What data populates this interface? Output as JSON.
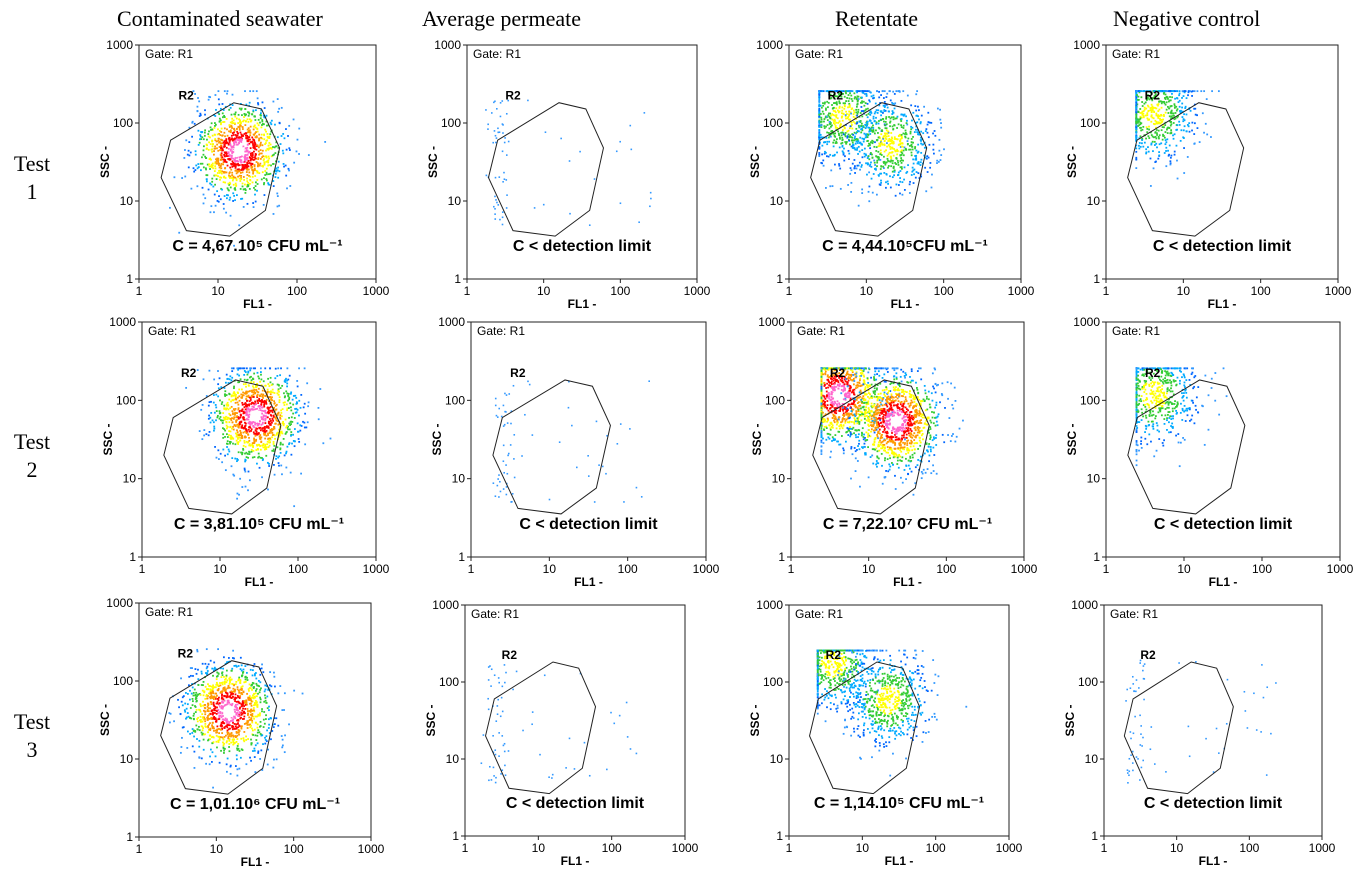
{
  "columns": [
    "Contaminated seawater",
    "Average permeate",
    "Retentate",
    "Negative control"
  ],
  "rows": [
    {
      "line1": "Test",
      "line2": "1"
    },
    {
      "line1": "Test",
      "line2": "2"
    },
    {
      "line1": "Test",
      "line2": "3"
    }
  ],
  "axis": {
    "xlabel": "FL1  -",
    "ylabel": "SSC  -",
    "xticks": [
      "1",
      "10",
      "100",
      "1000"
    ],
    "yticks": [
      "1",
      "10",
      "100",
      "1000"
    ],
    "scale": "log",
    "range": [
      1,
      1000
    ]
  },
  "gate_label": "Gate: R1",
  "region_label": "R2",
  "chart_data": [
    {
      "type": "scatter",
      "row": 1,
      "column": "Contaminated seawater",
      "annotation": "C = 4,67.10⁵ CFU mL⁻¹",
      "cluster": {
        "x": 18,
        "y": 45
      },
      "density": "high"
    },
    {
      "type": "scatter",
      "row": 1,
      "column": "Average permeate",
      "annotation": "C < detection limit",
      "density": "sparse"
    },
    {
      "type": "scatter",
      "row": 1,
      "column": "Retentate",
      "annotation": "C = 4,44.10⁵CFU mL⁻¹",
      "clusters": [
        {
          "x": 5,
          "y": 120
        },
        {
          "x": 20,
          "y": 55
        }
      ],
      "density": "medium"
    },
    {
      "type": "scatter",
      "row": 1,
      "column": "Negative control",
      "annotation": "C < detection limit",
      "cluster": {
        "x": 4,
        "y": 130
      },
      "density": "medium"
    },
    {
      "type": "scatter",
      "row": 2,
      "column": "Contaminated seawater",
      "annotation": "C = 3,81.10⁵ CFU mL⁻¹",
      "cluster": {
        "x": 28,
        "y": 65
      },
      "density": "high"
    },
    {
      "type": "scatter",
      "row": 2,
      "column": "Average permeate",
      "annotation": "C < detection limit",
      "density": "sparse"
    },
    {
      "type": "scatter",
      "row": 2,
      "column": "Retentate",
      "annotation": "C = 7,22.10⁷ CFU mL⁻¹",
      "clusters": [
        {
          "x": 4,
          "y": 120
        },
        {
          "x": 22,
          "y": 55
        }
      ],
      "density": "high"
    },
    {
      "type": "scatter",
      "row": 2,
      "column": "Negative control",
      "annotation": "C < detection limit",
      "cluster": {
        "x": 4,
        "y": 120
      },
      "density": "medium"
    },
    {
      "type": "scatter",
      "row": 3,
      "column": "Contaminated seawater",
      "annotation": "C = 1,01.10⁶ CFU mL⁻¹",
      "cluster": {
        "x": 14,
        "y": 42
      },
      "density": "high"
    },
    {
      "type": "scatter",
      "row": 3,
      "column": "Average permeate",
      "annotation": "C < detection limit",
      "density": "sparse"
    },
    {
      "type": "scatter",
      "row": 3,
      "column": "Retentate",
      "annotation": "C = 1,14.10⁵ CFU mL⁻¹",
      "clusters": [
        {
          "x": 4,
          "y": 180
        },
        {
          "x": 22,
          "y": 60
        }
      ],
      "density": "medium"
    },
    {
      "type": "scatter",
      "row": 3,
      "column": "Negative control",
      "annotation": "C < detection limit",
      "density": "sparse"
    }
  ]
}
